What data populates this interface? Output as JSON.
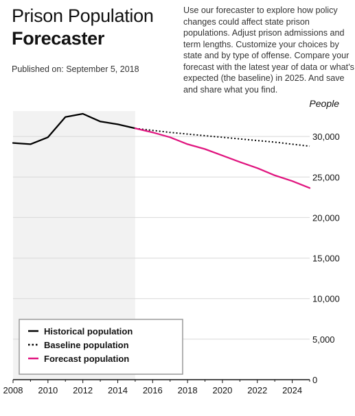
{
  "header": {
    "title_line1": "Prison Population",
    "title_line2": "Forecaster",
    "published": "Published on: September 5, 2018",
    "description": "Use our forecaster to explore how policy changes could affect state prison populations. Adjust prison admissions and term lengths. Customize your choices by state and by type of offense. Compare your forecast with the latest year of data or what’s expected (the baseline) in 2025. And save and share what you find."
  },
  "chart_data": {
    "type": "line",
    "ylabel": "People",
    "xlim": [
      2008,
      2025
    ],
    "ylim": [
      0,
      35000
    ],
    "x_ticks": [
      2008,
      2010,
      2012,
      2014,
      2016,
      2018,
      2020,
      2022,
      2024
    ],
    "x_tick_labels": [
      "2008",
      "2010",
      "2012",
      "2014",
      "2016",
      "2018",
      "2020",
      "2022",
      "2024"
    ],
    "y_ticks": [
      0,
      5000,
      10000,
      15000,
      20000,
      25000,
      30000
    ],
    "y_tick_labels": [
      "0",
      "5,000",
      "10,000",
      "15,000",
      "20,000",
      "25,000",
      "30,000"
    ],
    "historical_range": [
      2008,
      2015
    ],
    "series": [
      {
        "name": "Historical population",
        "style": "solid",
        "color": "#000000",
        "x": [
          2008,
          2009,
          2010,
          2011,
          2012,
          2013,
          2014,
          2015
        ],
        "y": [
          29200,
          29050,
          29900,
          32400,
          32800,
          31850,
          31500,
          31000
        ]
      },
      {
        "name": "Baseline population",
        "style": "dotted",
        "color": "#000000",
        "x": [
          2015,
          2016,
          2017,
          2018,
          2019,
          2020,
          2021,
          2022,
          2023,
          2024,
          2025
        ],
        "y": [
          31000,
          30750,
          30500,
          30300,
          30100,
          29900,
          29700,
          29500,
          29300,
          29050,
          28800
        ]
      },
      {
        "name": "Forecast population",
        "style": "solid",
        "color": "#e0157f",
        "x": [
          2015,
          2016,
          2017,
          2018,
          2019,
          2020,
          2021,
          2022,
          2023,
          2024,
          2025
        ],
        "y": [
          31000,
          30500,
          29900,
          29050,
          28450,
          27650,
          26850,
          26100,
          25200,
          24500,
          23650
        ]
      }
    ],
    "legend_position": "bottom-left"
  }
}
